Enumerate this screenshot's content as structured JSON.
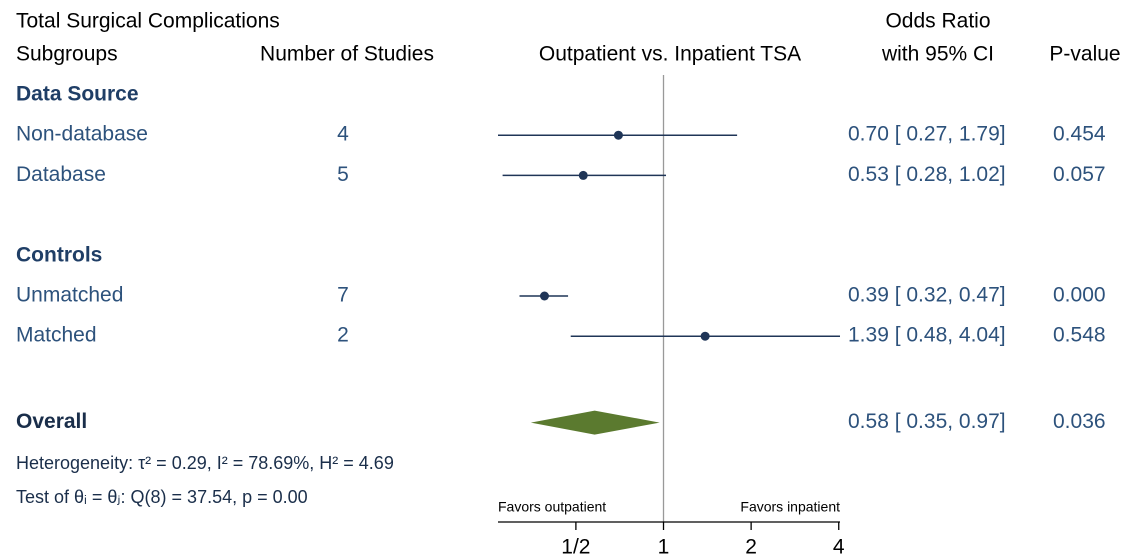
{
  "chart_data": {
    "type": "forest",
    "title": "Total Surgical Complications",
    "columns": {
      "subgroups": "Subgroups",
      "studies": "Number of Studies",
      "plot": "Outpatient vs. Inpatient TSA",
      "odds_ratio": [
        "Odds Ratio",
        "with 95% CI"
      ],
      "p_value": "P-value"
    },
    "groups": [
      {
        "name": "Data Source",
        "categories": [
          "Non-database",
          "Database"
        ],
        "studies": [
          4,
          5
        ],
        "values": [
          0.7,
          0.53
        ],
        "lower": [
          0.27,
          0.28
        ],
        "upper": [
          1.79,
          1.02
        ],
        "value_labels": [
          "0.70 [ 0.27,  1.79]",
          "0.53 [ 0.28,  1.02]"
        ],
        "p_values": [
          0.454,
          0.057
        ]
      },
      {
        "name": "Controls",
        "categories": [
          "Unmatched",
          "Matched"
        ],
        "studies": [
          7,
          2
        ],
        "values": [
          0.39,
          1.39
        ],
        "lower": [
          0.32,
          0.48
        ],
        "upper": [
          0.47,
          4.04
        ],
        "value_labels": [
          "0.39 [ 0.32,  0.47]",
          "1.39 [ 0.48,  4.04]"
        ],
        "p_values": [
          {
            "value": 0,
            "label": "0.000"
          },
          0.548
        ]
      }
    ],
    "overall": {
      "name": "Overall",
      "value": 0.58,
      "lower": 0.35,
      "upper": 0.97,
      "value_label": "0.58 [ 0.35,  0.97]",
      "p_value": 0.036
    },
    "annotations": [
      "Heterogeneity: τ² = 0.29, I² = 78.69%, H² = 4.69",
      "Test of θᵢ = θⱼ: Q(8) = 37.54, p = 0.00"
    ],
    "favors": [
      "Favors outpatient",
      "Favors inpatient"
    ],
    "xlim": [
      0.27,
      4.04
    ],
    "xticks": [
      {
        "value": 0.5,
        "label": "1/2"
      },
      1,
      2,
      4
    ],
    "log_scale": true,
    "reference": 1,
    "line_color": "#1f3557",
    "diamond_color": "#5b7a2f"
  }
}
